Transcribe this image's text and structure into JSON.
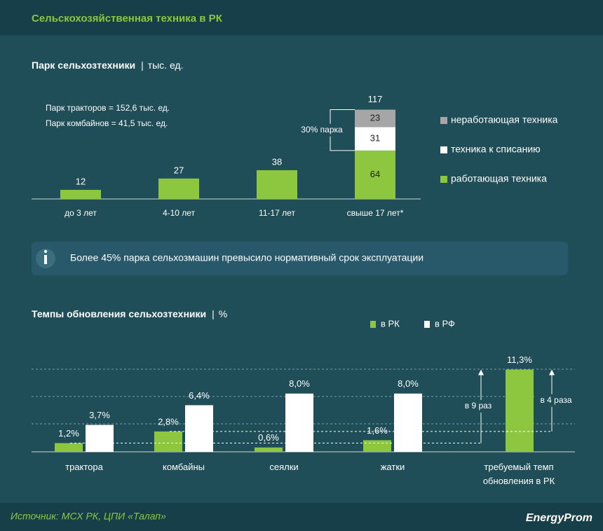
{
  "header": {
    "title": "Сельскохозяйственная техника в РК"
  },
  "chart_data": [
    {
      "type": "stacked_bar",
      "title": "Парк сельхозтехники",
      "subtitle": "тыс. ед.",
      "notes": [
        "Парк тракторов = 152,6 тыс. ед.",
        "Парк комбайнов = 41,5 тыс. ед."
      ],
      "categories": [
        "до 3 лет",
        "4-10 лет",
        "11-17 лет",
        "свыше 17 лет*"
      ],
      "series": [
        {
          "name": "работающая техника",
          "color": "#8dc63f",
          "values": [
            12,
            27,
            38,
            64
          ]
        },
        {
          "name": "техника к списанию",
          "color": "#ffffff",
          "values": [
            null,
            null,
            null,
            31
          ]
        },
        {
          "name": "неработающая техника",
          "color": "#a6a6a6",
          "values": [
            null,
            null,
            null,
            23
          ]
        }
      ],
      "totals": [
        null,
        null,
        null,
        117
      ],
      "annotation": "30% парка"
    },
    {
      "type": "grouped_bar",
      "title": "Темпы обновления сельхозтехники",
      "subtitle": "%",
      "categories": [
        "трактора",
        "комбайны",
        "сеялки",
        "жатки",
        "требуемый темп обновления в РК"
      ],
      "series": [
        {
          "name": "в РК",
          "color": "#8dc63f",
          "values": [
            1.2,
            2.8,
            0.6,
            1.6,
            11.3
          ],
          "value_labels": [
            "1,2%",
            "2,8%",
            "0,6%",
            "1,6%",
            "11,3%"
          ]
        },
        {
          "name": "в РФ",
          "color": "#ffffff",
          "values": [
            3.7,
            6.4,
            8.0,
            8.0,
            null
          ],
          "value_labels": [
            "3,7%",
            "6,4%",
            "8,0%",
            "8,0%",
            null
          ]
        }
      ],
      "annotations": [
        "в 9 раз",
        "в 4 раза"
      ]
    }
  ],
  "info": "Более 45% парка сельхозмашин превысило нормативный срок эксплуатации",
  "source": "Источник: МСХ РК, ЦПИ «Талап»",
  "brand": "EnergyProm"
}
